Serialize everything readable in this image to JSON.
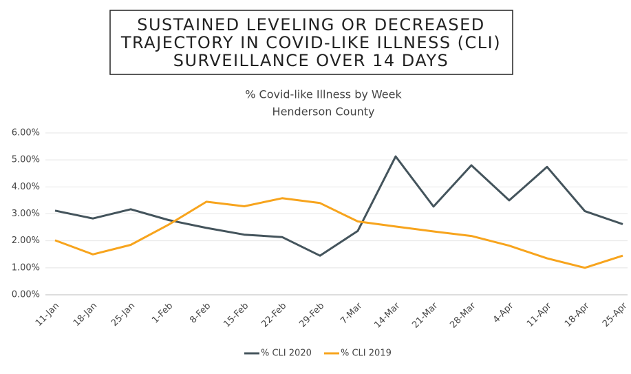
{
  "heading": [
    "SUSTAINED LEVELING OR DECREASED",
    "TRAJECTORY IN COVID-LIKE ILLNESS (CLI)",
    "SURVEILLANCE OVER 14 DAYS"
  ],
  "chart_data": {
    "type": "line",
    "title": "% Covid-like Illness by Week",
    "subtitle": "Henderson County",
    "categories": [
      "11-Jan",
      "18-Jan",
      "25-Jan",
      "1-Feb",
      "8-Feb",
      "15-Feb",
      "22-Feb",
      "29-Feb",
      "7-Mar",
      "14-Mar",
      "21-Mar",
      "28-Mar",
      "4-Apr",
      "11-Apr",
      "18-Apr",
      "25-Apr"
    ],
    "series": [
      {
        "name": "% CLI 2020",
        "color": "#44545c",
        "values": [
          3.12,
          2.83,
          3.17,
          2.77,
          2.48,
          2.23,
          2.14,
          1.45,
          2.37,
          5.13,
          3.27,
          4.8,
          3.5,
          4.74,
          3.1,
          2.62
        ]
      },
      {
        "name": "% CLI 2019",
        "color": "#f7a41d",
        "values": [
          2.02,
          1.5,
          1.85,
          2.6,
          3.45,
          3.28,
          3.58,
          3.4,
          2.72,
          2.53,
          2.35,
          2.18,
          1.82,
          1.35,
          1.0,
          1.45
        ]
      }
    ],
    "ylim": [
      0,
      6
    ],
    "yticks": [
      {
        "value": 0,
        "label": "0.00%"
      },
      {
        "value": 1,
        "label": "1.00%"
      },
      {
        "value": 2,
        "label": "2.00%"
      },
      {
        "value": 3,
        "label": "3.00%"
      },
      {
        "value": 4,
        "label": "4.00%"
      },
      {
        "value": 5,
        "label": "5.00%"
      },
      {
        "value": 6,
        "label": "6.00%"
      }
    ],
    "grid": true,
    "legend": "bottom"
  }
}
